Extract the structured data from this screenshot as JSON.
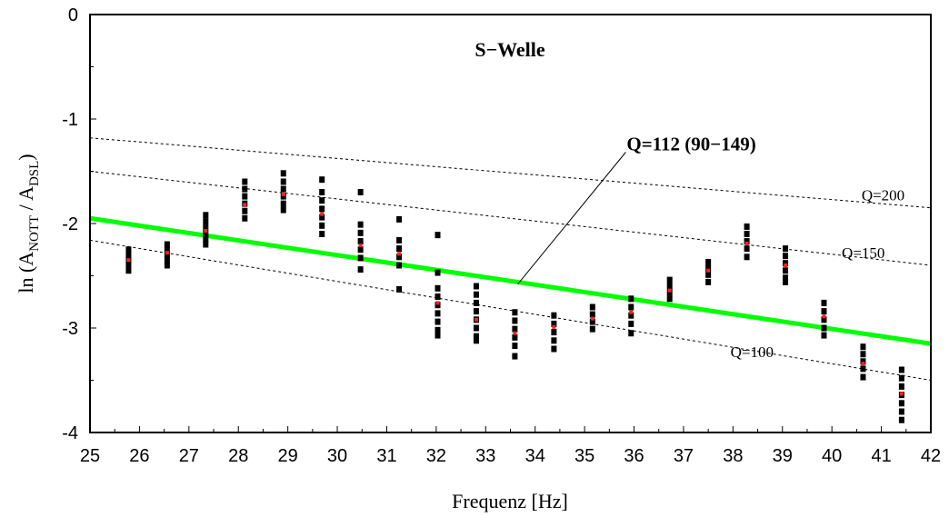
{
  "chart_data": {
    "type": "scatter",
    "title": "S−Welle",
    "xlabel": "Frequenz [Hz]",
    "ylabel": {
      "prefix": "ln (A",
      "sub1": "NOTT",
      "mid": " / A",
      "sub2": "DSL",
      "suffix": ")"
    },
    "xlim": [
      25,
      42
    ],
    "ylim": [
      -4,
      0
    ],
    "x_ticks": [
      "25",
      "26",
      "27",
      "28",
      "29",
      "30",
      "31",
      "32",
      "33",
      "34",
      "35",
      "36",
      "37",
      "38",
      "39",
      "40",
      "41",
      "42"
    ],
    "y_ticks": [
      "0",
      "-1",
      "-2",
      "-3",
      "-4"
    ],
    "grid": false,
    "fit_line": {
      "label": "Q=112 (90−149)",
      "color": "#00ff00",
      "x": [
        25,
        42
      ],
      "y": [
        -1.95,
        -3.15
      ],
      "label_at": [
        35.85,
        -1.3
      ],
      "pointer_to": [
        33.65,
        -2.58
      ]
    },
    "reference_lines": [
      {
        "label": "Q=200",
        "x": [
          25,
          42
        ],
        "y": [
          -1.18,
          -1.85
        ],
        "label_at": [
          40.6,
          -1.78
        ]
      },
      {
        "label": "Q=150",
        "x": [
          25,
          42
        ],
        "y": [
          -1.5,
          -2.4
        ],
        "label_at": [
          40.2,
          -2.33
        ]
      },
      {
        "label": "Q=100",
        "x": [
          25,
          42
        ],
        "y": [
          -2.16,
          -3.5
        ],
        "label_at": [
          37.95,
          -3.28
        ]
      }
    ],
    "series": [
      {
        "name": "",
        "color": "#000000",
        "points": [
          {
            "x": 25.78,
            "y": -2.25
          },
          {
            "x": 25.78,
            "y": -2.3
          },
          {
            "x": 25.78,
            "y": -2.35
          },
          {
            "x": 25.78,
            "y": -2.4
          },
          {
            "x": 25.78,
            "y": -2.45
          },
          {
            "x": 26.56,
            "y": -2.2
          },
          {
            "x": 26.56,
            "y": -2.25
          },
          {
            "x": 26.56,
            "y": -2.3
          },
          {
            "x": 26.56,
            "y": -2.35
          },
          {
            "x": 26.56,
            "y": -2.4
          },
          {
            "x": 27.34,
            "y": -1.92
          },
          {
            "x": 27.34,
            "y": -1.98
          },
          {
            "x": 27.34,
            "y": -2.04
          },
          {
            "x": 27.34,
            "y": -2.1
          },
          {
            "x": 27.34,
            "y": -2.15
          },
          {
            "x": 27.34,
            "y": -2.2
          },
          {
            "x": 28.13,
            "y": -1.6
          },
          {
            "x": 28.13,
            "y": -1.67
          },
          {
            "x": 28.13,
            "y": -1.74
          },
          {
            "x": 28.13,
            "y": -1.81
          },
          {
            "x": 28.13,
            "y": -1.88
          },
          {
            "x": 28.13,
            "y": -1.95
          },
          {
            "x": 28.91,
            "y": -1.52
          },
          {
            "x": 28.91,
            "y": -1.6
          },
          {
            "x": 28.91,
            "y": -1.67
          },
          {
            "x": 28.91,
            "y": -1.74
          },
          {
            "x": 28.91,
            "y": -1.81
          },
          {
            "x": 28.91,
            "y": -1.87
          },
          {
            "x": 29.69,
            "y": -1.58
          },
          {
            "x": 29.69,
            "y": -1.7
          },
          {
            "x": 29.69,
            "y": -1.78
          },
          {
            "x": 29.69,
            "y": -1.86
          },
          {
            "x": 29.69,
            "y": -1.94
          },
          {
            "x": 29.69,
            "y": -2.02
          },
          {
            "x": 29.69,
            "y": -2.1
          },
          {
            "x": 30.47,
            "y": -1.7
          },
          {
            "x": 30.47,
            "y": -2.01
          },
          {
            "x": 30.47,
            "y": -2.09
          },
          {
            "x": 30.47,
            "y": -2.17
          },
          {
            "x": 30.47,
            "y": -2.25
          },
          {
            "x": 30.47,
            "y": -2.33
          },
          {
            "x": 30.47,
            "y": -2.44
          },
          {
            "x": 31.25,
            "y": -1.96
          },
          {
            "x": 31.25,
            "y": -2.16
          },
          {
            "x": 31.25,
            "y": -2.24
          },
          {
            "x": 31.25,
            "y": -2.32
          },
          {
            "x": 31.25,
            "y": -2.4
          },
          {
            "x": 31.25,
            "y": -2.63
          },
          {
            "x": 32.03,
            "y": -2.11
          },
          {
            "x": 32.03,
            "y": -2.47
          },
          {
            "x": 32.03,
            "y": -2.62
          },
          {
            "x": 32.03,
            "y": -2.7
          },
          {
            "x": 32.03,
            "y": -2.78
          },
          {
            "x": 32.03,
            "y": -2.86
          },
          {
            "x": 32.03,
            "y": -2.94
          },
          {
            "x": 32.03,
            "y": -3.02
          },
          {
            "x": 32.03,
            "y": -3.07
          },
          {
            "x": 32.81,
            "y": -2.6
          },
          {
            "x": 32.81,
            "y": -2.68
          },
          {
            "x": 32.81,
            "y": -2.76
          },
          {
            "x": 32.81,
            "y": -2.84
          },
          {
            "x": 32.81,
            "y": -2.92
          },
          {
            "x": 32.81,
            "y": -3.0
          },
          {
            "x": 32.81,
            "y": -3.08
          },
          {
            "x": 32.81,
            "y": -3.12
          },
          {
            "x": 33.59,
            "y": -2.85
          },
          {
            "x": 33.59,
            "y": -2.93
          },
          {
            "x": 33.59,
            "y": -3.01
          },
          {
            "x": 33.59,
            "y": -3.09
          },
          {
            "x": 33.59,
            "y": -3.17
          },
          {
            "x": 33.59,
            "y": -3.27
          },
          {
            "x": 34.38,
            "y": -2.88
          },
          {
            "x": 34.38,
            "y": -2.96
          },
          {
            "x": 34.38,
            "y": -3.04
          },
          {
            "x": 34.38,
            "y": -3.12
          },
          {
            "x": 34.38,
            "y": -3.2
          },
          {
            "x": 35.16,
            "y": -2.8
          },
          {
            "x": 35.16,
            "y": -2.87
          },
          {
            "x": 35.16,
            "y": -2.94
          },
          {
            "x": 35.16,
            "y": -3.01
          },
          {
            "x": 35.94,
            "y": -2.72
          },
          {
            "x": 35.94,
            "y": -2.8
          },
          {
            "x": 35.94,
            "y": -2.88
          },
          {
            "x": 35.94,
            "y": -2.96
          },
          {
            "x": 35.94,
            "y": -3.05
          },
          {
            "x": 36.72,
            "y": -2.54
          },
          {
            "x": 36.72,
            "y": -2.6
          },
          {
            "x": 36.72,
            "y": -2.66
          },
          {
            "x": 36.72,
            "y": -2.72
          },
          {
            "x": 37.5,
            "y": -2.37
          },
          {
            "x": 37.5,
            "y": -2.43
          },
          {
            "x": 37.5,
            "y": -2.49
          },
          {
            "x": 37.5,
            "y": -2.56
          },
          {
            "x": 38.28,
            "y": -2.03
          },
          {
            "x": 38.28,
            "y": -2.1
          },
          {
            "x": 38.28,
            "y": -2.17
          },
          {
            "x": 38.28,
            "y": -2.24
          },
          {
            "x": 38.28,
            "y": -2.32
          },
          {
            "x": 39.06,
            "y": -2.24
          },
          {
            "x": 39.06,
            "y": -2.31
          },
          {
            "x": 39.06,
            "y": -2.38
          },
          {
            "x": 39.06,
            "y": -2.45
          },
          {
            "x": 39.06,
            "y": -2.52
          },
          {
            "x": 39.06,
            "y": -2.56
          },
          {
            "x": 39.84,
            "y": -2.76
          },
          {
            "x": 39.84,
            "y": -2.84
          },
          {
            "x": 39.84,
            "y": -2.92
          },
          {
            "x": 39.84,
            "y": -3.0
          },
          {
            "x": 39.84,
            "y": -3.07
          },
          {
            "x": 40.63,
            "y": -3.18
          },
          {
            "x": 40.63,
            "y": -3.25
          },
          {
            "x": 40.63,
            "y": -3.32
          },
          {
            "x": 40.63,
            "y": -3.39
          },
          {
            "x": 40.63,
            "y": -3.47
          },
          {
            "x": 41.41,
            "y": -3.4
          },
          {
            "x": 41.41,
            "y": -3.48
          },
          {
            "x": 41.41,
            "y": -3.56
          },
          {
            "x": 41.41,
            "y": -3.64
          },
          {
            "x": 41.41,
            "y": -3.72
          },
          {
            "x": 41.41,
            "y": -3.8
          },
          {
            "x": 41.41,
            "y": -3.88
          }
        ]
      },
      {
        "name": "",
        "color": "#ff2020",
        "points": [
          {
            "x": 25.78,
            "y": -2.35
          },
          {
            "x": 26.56,
            "y": -2.28
          },
          {
            "x": 27.34,
            "y": -2.07
          },
          {
            "x": 28.13,
            "y": -1.82
          },
          {
            "x": 28.91,
            "y": -1.72
          },
          {
            "x": 29.69,
            "y": -1.91
          },
          {
            "x": 30.47,
            "y": -2.21
          },
          {
            "x": 31.25,
            "y": -2.29
          },
          {
            "x": 32.03,
            "y": -2.76
          },
          {
            "x": 32.81,
            "y": -2.92
          },
          {
            "x": 33.59,
            "y": -3.05
          },
          {
            "x": 34.38,
            "y": -2.99
          },
          {
            "x": 35.16,
            "y": -2.91
          },
          {
            "x": 35.94,
            "y": -2.85
          },
          {
            "x": 36.72,
            "y": -2.64
          },
          {
            "x": 37.5,
            "y": -2.45
          },
          {
            "x": 38.28,
            "y": -2.19
          },
          {
            "x": 39.06,
            "y": -2.4
          },
          {
            "x": 39.84,
            "y": -2.89
          },
          {
            "x": 40.63,
            "y": -3.34
          },
          {
            "x": 41.41,
            "y": -3.63
          }
        ]
      }
    ]
  }
}
